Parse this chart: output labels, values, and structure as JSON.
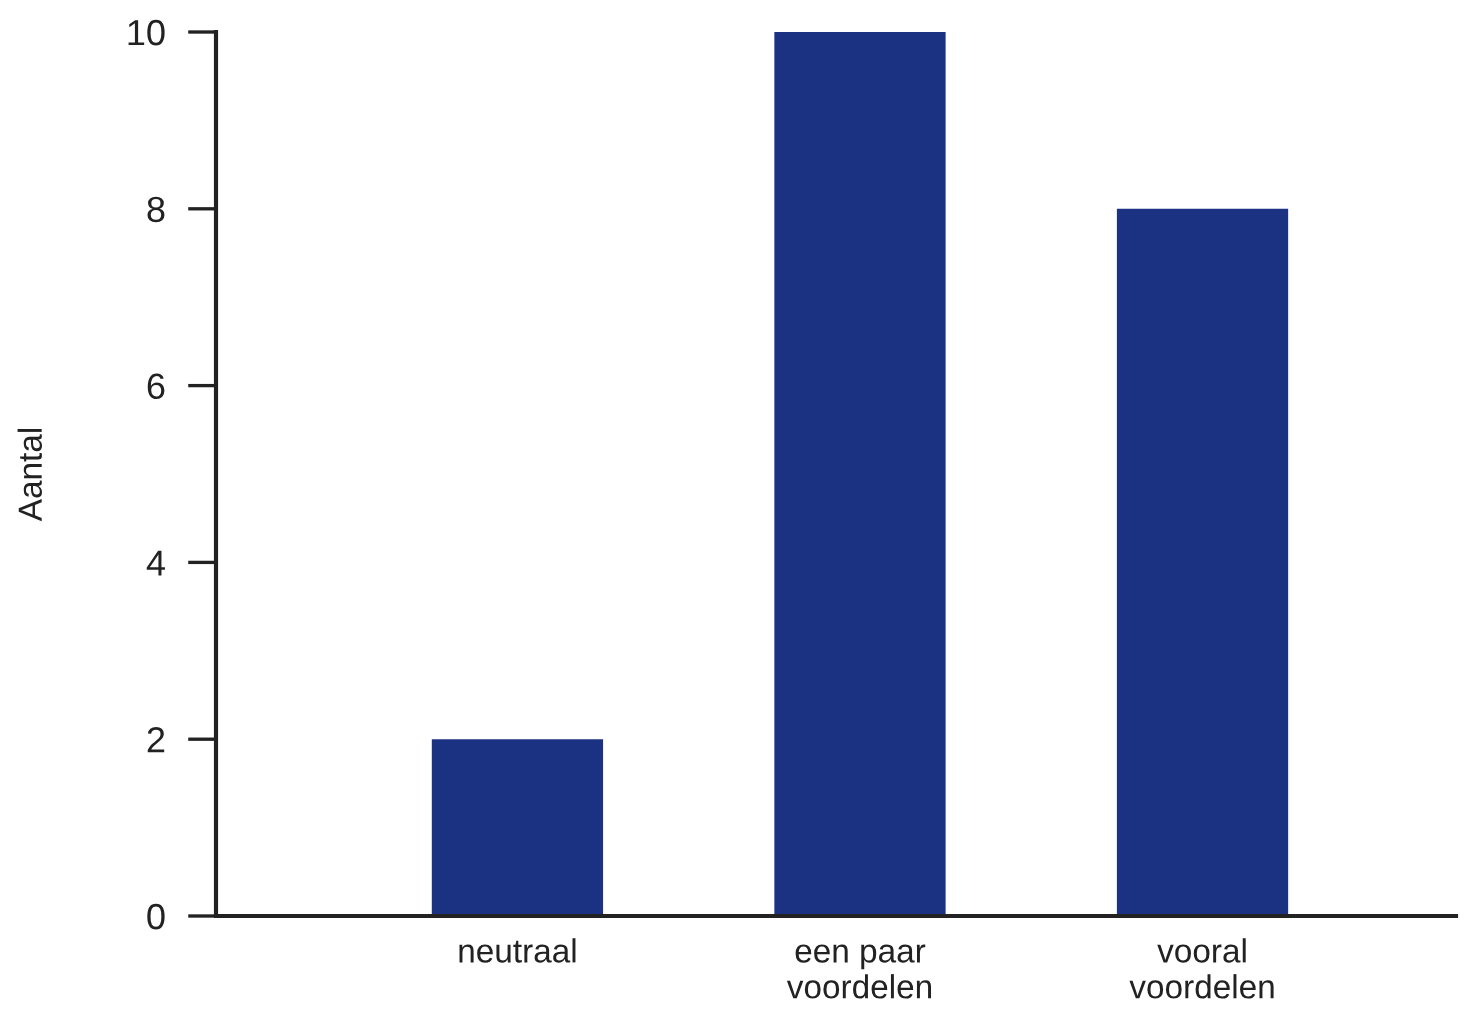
{
  "chart_data": {
    "type": "bar",
    "ylabel": "Aantal",
    "categories": [
      "neutraal",
      "een paar\nvoordelen",
      "vooral\nvoordelen"
    ],
    "values": [
      2,
      10,
      8
    ],
    "color": "#1b3282",
    "ylim": [
      0,
      10
    ],
    "yticks": [
      0,
      2,
      4,
      6,
      8,
      10
    ],
    "grid": false
  }
}
